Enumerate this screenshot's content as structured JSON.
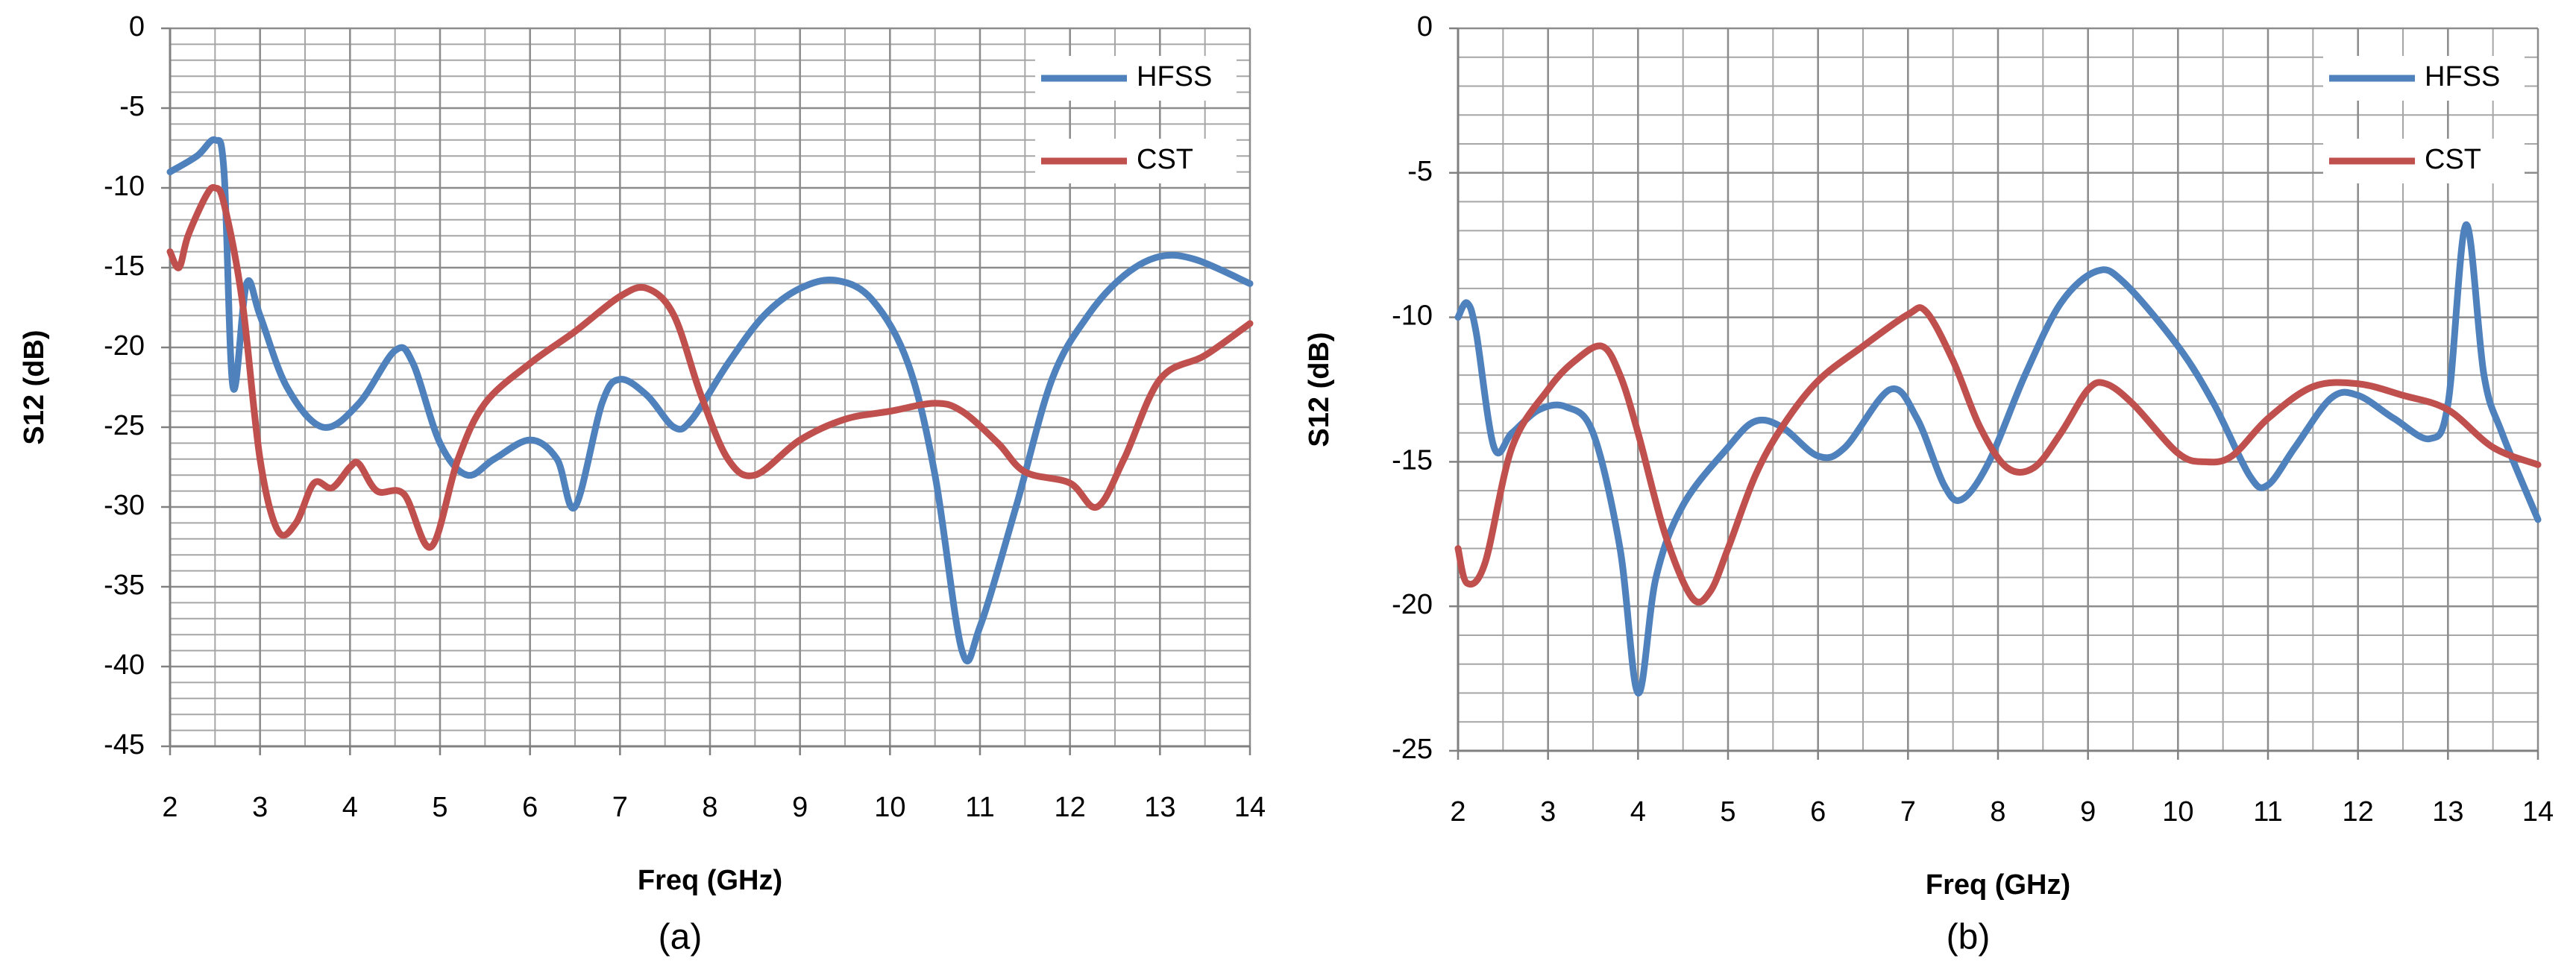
{
  "chart_data": [
    {
      "type": "line",
      "caption": "(a)",
      "xlabel": "Freq (GHz)",
      "ylabel": "S12 (dB)",
      "xlim": [
        2,
        14
      ],
      "xticks": [
        2,
        3,
        4,
        5,
        6,
        7,
        8,
        9,
        10,
        11,
        12,
        13,
        14
      ],
      "ylim": [
        -45,
        0
      ],
      "yticks": [
        0,
        -5,
        -10,
        -15,
        -20,
        -25,
        -30,
        -35,
        -40,
        -45
      ],
      "grid": true,
      "minor_grid": {
        "x": 0.5,
        "y": 1
      },
      "legend": "upper right",
      "series": [
        {
          "name": "HFSS",
          "color": "#4f81bd",
          "x": [
            2.0,
            2.3,
            2.5,
            2.6,
            2.7,
            2.85,
            3.0,
            3.3,
            3.7,
            4.1,
            4.5,
            4.7,
            5.0,
            5.3,
            5.6,
            6.0,
            6.3,
            6.5,
            6.8,
            7.0,
            7.3,
            7.6,
            7.8,
            8.2,
            8.6,
            9.0,
            9.4,
            9.8,
            10.2,
            10.5,
            10.8,
            11.0,
            11.4,
            11.8,
            12.2,
            12.6,
            13.0,
            13.4,
            14.0
          ],
          "values": [
            -9,
            -8,
            -7,
            -9,
            -22.5,
            -16,
            -18,
            -22.5,
            -25,
            -23.5,
            -20.2,
            -21,
            -26,
            -28,
            -27,
            -25.8,
            -27,
            -30,
            -23.5,
            -22,
            -23,
            -25,
            -24.5,
            -21,
            -18,
            -16.3,
            -15.8,
            -17,
            -21,
            -28,
            -39,
            -37.5,
            -30,
            -22,
            -18,
            -15.5,
            -14.3,
            -14.5,
            -16
          ]
        },
        {
          "name": "CST",
          "color": "#c0504d",
          "x": [
            2.0,
            2.1,
            2.2,
            2.4,
            2.5,
            2.6,
            2.8,
            3.0,
            3.2,
            3.4,
            3.6,
            3.8,
            4.0,
            4.1,
            4.3,
            4.6,
            4.9,
            5.2,
            5.5,
            6.0,
            6.5,
            7.0,
            7.3,
            7.6,
            7.9,
            8.2,
            8.5,
            9.0,
            9.5,
            10.0,
            10.5,
            10.8,
            11.2,
            11.5,
            12.0,
            12.3,
            12.6,
            13.0,
            13.5,
            14.0
          ],
          "values": [
            -14,
            -15,
            -13,
            -10.5,
            -10,
            -11,
            -17,
            -27,
            -31.5,
            -31,
            -28.5,
            -28.8,
            -27.5,
            -27.3,
            -29,
            -29.2,
            -32.5,
            -27,
            -23.5,
            -21,
            -19,
            -16.8,
            -16.3,
            -18,
            -23,
            -27,
            -28,
            -25.8,
            -24.5,
            -24,
            -23.5,
            -24,
            -26,
            -27.8,
            -28.5,
            -30,
            -27,
            -22,
            -20.5,
            -18.5
          ]
        }
      ]
    },
    {
      "type": "line",
      "caption": "(b)",
      "xlabel": "Freq (GHz)",
      "ylabel": "S12 (dB)",
      "xlim": [
        2,
        14
      ],
      "xticks": [
        2,
        3,
        4,
        5,
        6,
        7,
        8,
        9,
        10,
        11,
        12,
        13,
        14
      ],
      "ylim": [
        -25,
        0
      ],
      "yticks": [
        0,
        -5,
        -10,
        -15,
        -20,
        -25
      ],
      "grid": true,
      "minor_grid": {
        "x": 0.5,
        "y": 1
      },
      "legend": "upper right",
      "series": [
        {
          "name": "HFSS",
          "color": "#4f81bd",
          "x": [
            2.0,
            2.1,
            2.2,
            2.4,
            2.6,
            2.9,
            3.2,
            3.5,
            3.8,
            4.0,
            4.2,
            4.5,
            5.0,
            5.3,
            5.6,
            6.0,
            6.3,
            6.8,
            7.1,
            7.4,
            7.6,
            7.9,
            8.3,
            8.7,
            9.1,
            9.4,
            10.0,
            10.4,
            10.8,
            11.0,
            11.3,
            11.7,
            12.0,
            12.4,
            12.8,
            13.0,
            13.2,
            13.4,
            13.6,
            14.0
          ],
          "values": [
            -10,
            -9.5,
            -10.5,
            -14.5,
            -14,
            -13.2,
            -13.1,
            -14,
            -18,
            -23,
            -19,
            -16.5,
            -14.5,
            -13.6,
            -13.8,
            -14.8,
            -14.5,
            -12.5,
            -13.5,
            -15.8,
            -16.3,
            -15,
            -12,
            -9.5,
            -8.4,
            -8.8,
            -11,
            -13,
            -15.5,
            -15.8,
            -14.5,
            -12.8,
            -12.7,
            -13.5,
            -14.2,
            -13,
            -6.8,
            -12,
            -14,
            -17
          ]
        },
        {
          "name": "CST",
          "color": "#c0504d",
          "x": [
            2.0,
            2.1,
            2.3,
            2.6,
            3.0,
            3.3,
            3.6,
            3.8,
            4.0,
            4.3,
            4.6,
            4.8,
            5.0,
            5.3,
            5.6,
            6.0,
            6.5,
            7.0,
            7.2,
            7.5,
            7.8,
            8.1,
            8.4,
            8.7,
            9.0,
            9.2,
            9.5,
            10.0,
            10.3,
            10.6,
            11.0,
            11.5,
            12.0,
            12.5,
            13.0,
            13.5,
            14.0
          ],
          "values": [
            -18,
            -19.2,
            -18.5,
            -14.5,
            -12.5,
            -11.5,
            -11,
            -12,
            -14,
            -17.5,
            -19.7,
            -19.5,
            -18,
            -15.5,
            -13.8,
            -12.2,
            -11,
            -9.9,
            -9.8,
            -11.5,
            -13.8,
            -15.2,
            -15.2,
            -14,
            -12.5,
            -12.3,
            -13,
            -14.7,
            -15,
            -14.8,
            -13.5,
            -12.4,
            -12.3,
            -12.7,
            -13.2,
            -14.5,
            -15.1
          ]
        }
      ]
    }
  ]
}
